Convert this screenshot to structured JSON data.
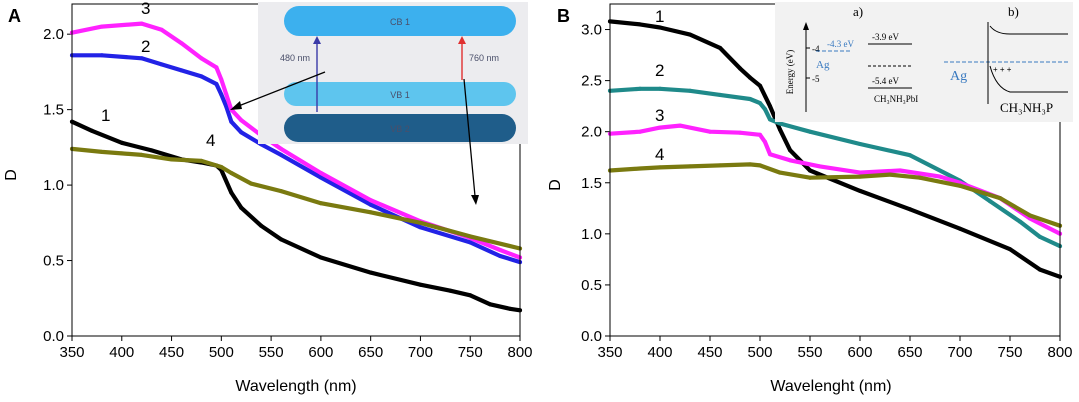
{
  "chart_data": [
    {
      "type": "line",
      "panel_label": "A",
      "xlabel": "Wavelength (nm)",
      "ylabel": "D",
      "xlim": [
        350,
        800
      ],
      "ylim": [
        0.0,
        2.2
      ],
      "xticks": [
        "350",
        "400",
        "450",
        "500",
        "550",
        "600",
        "650",
        "700",
        "750",
        "800"
      ],
      "yticks": [
        "0.0",
        "0.5",
        "1.0",
        "1.5",
        "2.0"
      ],
      "series": [
        {
          "name": "1",
          "color": "#000000",
          "x": [
            350,
            370,
            400,
            430,
            460,
            480,
            495,
            500,
            510,
            520,
            540,
            560,
            600,
            650,
            700,
            730,
            750,
            770,
            790,
            800
          ],
          "y": [
            1.42,
            1.36,
            1.28,
            1.23,
            1.17,
            1.15,
            1.13,
            1.1,
            0.95,
            0.85,
            0.73,
            0.64,
            0.52,
            0.42,
            0.34,
            0.3,
            0.27,
            0.21,
            0.18,
            0.17
          ]
        },
        {
          "name": "2",
          "color": "#2222e6",
          "x": [
            350,
            380,
            420,
            440,
            460,
            480,
            495,
            500,
            505,
            510,
            520,
            540,
            560,
            600,
            650,
            700,
            750,
            780,
            800
          ],
          "y": [
            1.86,
            1.86,
            1.84,
            1.8,
            1.76,
            1.72,
            1.67,
            1.6,
            1.52,
            1.42,
            1.35,
            1.27,
            1.2,
            1.05,
            0.87,
            0.72,
            0.62,
            0.53,
            0.49
          ]
        },
        {
          "name": "3",
          "color": "#ff22ff",
          "x": [
            350,
            380,
            420,
            440,
            460,
            480,
            495,
            500,
            505,
            510,
            520,
            540,
            560,
            600,
            650,
            700,
            750,
            780,
            800
          ],
          "y": [
            2.01,
            2.05,
            2.07,
            2.03,
            1.94,
            1.84,
            1.78,
            1.7,
            1.6,
            1.5,
            1.43,
            1.33,
            1.24,
            1.08,
            0.9,
            0.76,
            0.65,
            0.57,
            0.52
          ]
        },
        {
          "name": "4",
          "color": "#7a7a10",
          "x": [
            350,
            380,
            400,
            420,
            450,
            480,
            500,
            510,
            530,
            560,
            600,
            650,
            700,
            750,
            800
          ],
          "y": [
            1.24,
            1.22,
            1.21,
            1.2,
            1.17,
            1.16,
            1.12,
            1.08,
            1.01,
            0.96,
            0.88,
            0.82,
            0.75,
            0.66,
            0.58
          ]
        }
      ],
      "series_labels": [
        "1",
        "2",
        "3",
        "4"
      ],
      "inset": {
        "bands": [
          "CB 1",
          "VB 1",
          "VB 2"
        ],
        "arrow_left_label": "480 nm",
        "arrow_right_label": "760 nm"
      }
    },
    {
      "type": "line",
      "panel_label": "B",
      "xlabel": "Wavelenght (nm)",
      "ylabel": "D",
      "xlim": [
        350,
        800
      ],
      "ylim": [
        0.0,
        3.25
      ],
      "xticks": [
        "350",
        "400",
        "450",
        "500",
        "550",
        "600",
        "650",
        "700",
        "750",
        "800"
      ],
      "yticks": [
        "0.0",
        "0.5",
        "1.0",
        "1.5",
        "2.0",
        "2.5",
        "3.0"
      ],
      "series": [
        {
          "name": "1",
          "color": "#000000",
          "x": [
            350,
            380,
            400,
            430,
            460,
            480,
            490,
            500,
            510,
            520,
            530,
            550,
            600,
            650,
            700,
            750,
            780,
            800
          ],
          "y": [
            3.08,
            3.05,
            3.02,
            2.95,
            2.82,
            2.62,
            2.53,
            2.45,
            2.25,
            2.02,
            1.82,
            1.62,
            1.42,
            1.24,
            1.05,
            0.85,
            0.65,
            0.58
          ]
        },
        {
          "name": "2",
          "color": "#1f8a8a",
          "x": [
            350,
            380,
            400,
            430,
            460,
            490,
            500,
            505,
            510,
            520,
            550,
            600,
            650,
            700,
            730,
            760,
            780,
            800
          ],
          "y": [
            2.4,
            2.42,
            2.42,
            2.4,
            2.36,
            2.32,
            2.28,
            2.22,
            2.12,
            2.08,
            2.0,
            1.88,
            1.77,
            1.52,
            1.32,
            1.12,
            0.97,
            0.88
          ]
        },
        {
          "name": "3",
          "color": "#ff22ff",
          "x": [
            350,
            380,
            400,
            420,
            450,
            480,
            500,
            505,
            510,
            530,
            560,
            600,
            640,
            680,
            700,
            740,
            770,
            800
          ],
          "y": [
            1.98,
            2.0,
            2.04,
            2.06,
            2.0,
            1.99,
            1.97,
            1.9,
            1.78,
            1.72,
            1.66,
            1.6,
            1.62,
            1.56,
            1.5,
            1.35,
            1.15,
            1.0
          ]
        },
        {
          "name": "4",
          "color": "#7a7a10",
          "x": [
            350,
            380,
            400,
            430,
            460,
            490,
            500,
            520,
            550,
            600,
            630,
            660,
            700,
            740,
            770,
            800
          ],
          "y": [
            1.62,
            1.64,
            1.65,
            1.66,
            1.67,
            1.68,
            1.67,
            1.6,
            1.55,
            1.56,
            1.58,
            1.55,
            1.47,
            1.35,
            1.18,
            1.08
          ]
        }
      ],
      "series_labels": [
        "1",
        "2",
        "3",
        "4"
      ],
      "inset": {
        "label_a": "a)",
        "label_b": "b)",
        "yaxis_label": "Energy (eV)",
        "ytick_1": "-4",
        "ytick_2": "-5",
        "ag_level": "-4.3 eV",
        "cb_level": "-3.9 eV",
        "vb_level": "-5.4 eV",
        "metal": "Ag",
        "perovskite": "CH₃NH₃PbI",
        "perovskite_b": "CH₃NH₃P"
      }
    }
  ]
}
